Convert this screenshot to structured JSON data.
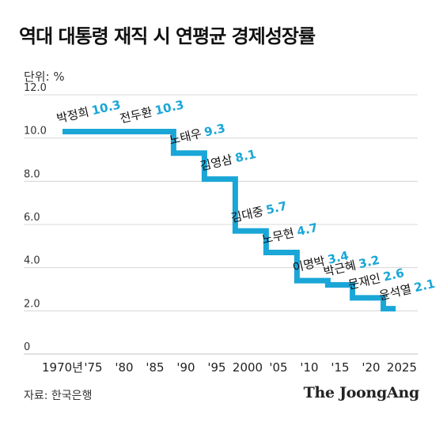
{
  "title": "역대 대통령 재직 시 연평균 경제성장률",
  "unit_label": "단위: %",
  "source": "자료: 한국은행",
  "brand": "The JoongAng",
  "colors": {
    "line": "#1aa6d7",
    "grid": "#cfcfcf"
  },
  "chart_data": {
    "type": "line",
    "title": "역대 대통령 재직 시 연평균 경제성장률",
    "ylabel": "단위: %",
    "xlabel": "",
    "xlim": [
      1970,
      2025
    ],
    "ylim": [
      0,
      12
    ],
    "grid": true,
    "y_ticks": [
      "12.0",
      "10.0",
      "8.0",
      "6.0",
      "4.0",
      "2.0",
      "0"
    ],
    "y_tick_values": [
      12,
      10,
      8,
      6,
      4,
      2,
      0
    ],
    "x_ticks": [
      "1970년",
      "'75",
      "'80",
      "'85",
      "'90",
      "'95",
      "2000",
      "'05",
      "'10",
      "'15",
      "'20",
      "2025"
    ],
    "x_tick_values": [
      1970,
      1975,
      1980,
      1985,
      1990,
      1995,
      2000,
      2005,
      2010,
      2015,
      2020,
      2025
    ],
    "series": [
      {
        "values": [
          {
            "president": "박정희",
            "label": "10.3",
            "value": 10.3,
            "start": 1970,
            "end": 1979
          },
          {
            "president": "전두환",
            "label": "10.3",
            "value": 10.3,
            "start": 1980,
            "end": 1988
          },
          {
            "president": "노태우",
            "label": "9.3",
            "value": 9.3,
            "start": 1988,
            "end": 1993
          },
          {
            "president": "김영삼",
            "label": "8.1",
            "value": 8.1,
            "start": 1993,
            "end": 1998
          },
          {
            "president": "김대중",
            "label": "5.7",
            "value": 5.7,
            "start": 1998,
            "end": 2003
          },
          {
            "president": "노무현",
            "label": "4.7",
            "value": 4.7,
            "start": 2003,
            "end": 2008
          },
          {
            "president": "이명박",
            "label": "3.4",
            "value": 3.4,
            "start": 2008,
            "end": 2013
          },
          {
            "president": "박근혜",
            "label": "3.2",
            "value": 3.2,
            "start": 2013,
            "end": 2017
          },
          {
            "president": "문재인",
            "label": "2.6",
            "value": 2.6,
            "start": 2017,
            "end": 2022
          },
          {
            "president": "윤석열",
            "label": "2.1",
            "value": 2.1,
            "start": 2022,
            "end": 2024
          }
        ]
      }
    ]
  }
}
